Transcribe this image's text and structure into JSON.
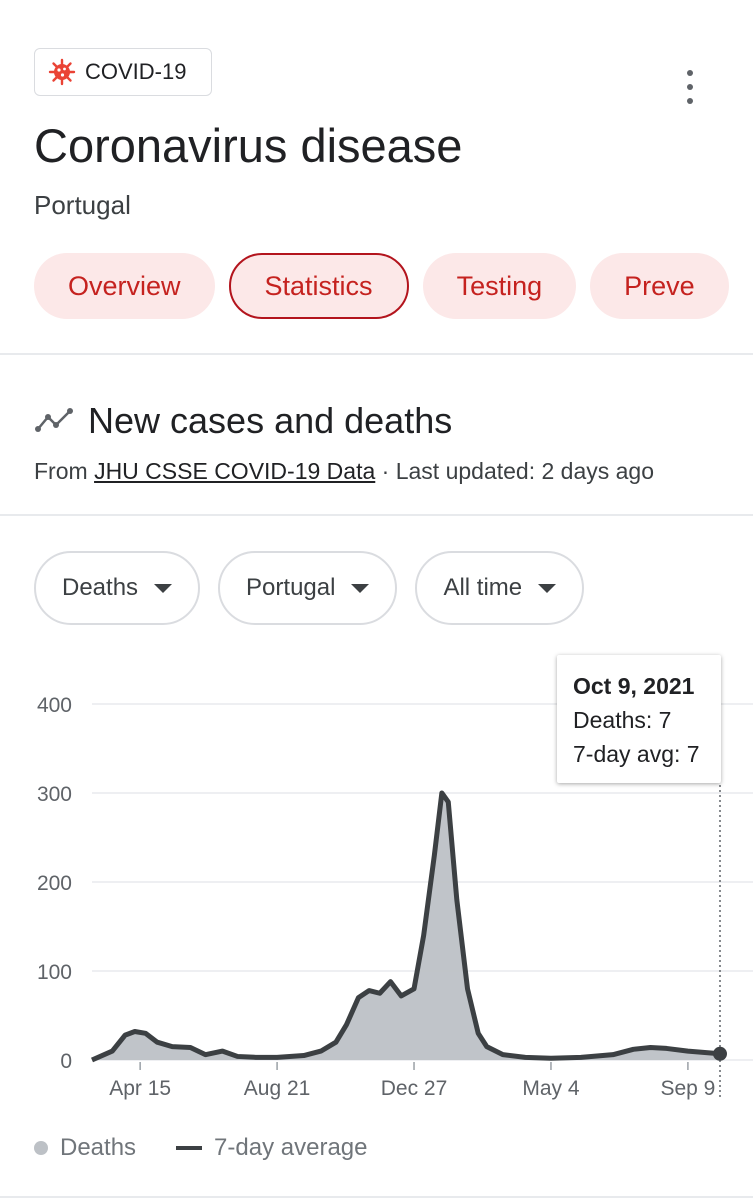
{
  "topic_chip": {
    "label": "COVID-19",
    "icon": "virus-icon",
    "icon_color": "#ea4335"
  },
  "header": {
    "title": "Coronavirus disease",
    "subtitle": "Portugal"
  },
  "tabs": [
    {
      "label": "Overview",
      "active": false
    },
    {
      "label": "Statistics",
      "active": true
    },
    {
      "label": "Testing",
      "active": false
    },
    {
      "label": "Preve",
      "active": false
    }
  ],
  "section": {
    "title": "New cases and deaths",
    "source_prefix": "From ",
    "source_link": "JHU CSSE COVID-19 Data",
    "updated": " · Last updated: 2 days ago"
  },
  "filters": {
    "metric": "Deaths",
    "region": "Portugal",
    "range": "All time"
  },
  "tooltip": {
    "date": "Oct 9, 2021",
    "deaths": "Deaths: 7",
    "avg": "7-day avg: 7"
  },
  "legend": {
    "deaths": "Deaths",
    "avg": "7-day average"
  },
  "colors": {
    "accent": "#c5221f",
    "bars": "#bdc1c6",
    "avg_line": "#3c4043"
  },
  "chart_data": {
    "type": "area",
    "y_ticks": [
      "400",
      "300",
      "200",
      "100",
      "0"
    ],
    "x_tick_labels": [
      "Apr 15",
      "Aug 21",
      "Dec 27",
      "May 4",
      "Sep 9"
    ],
    "ylim": [
      0,
      400
    ],
    "grid": true,
    "series": [
      {
        "name": "Deaths",
        "style": "area"
      },
      {
        "name": "7-day average",
        "style": "line"
      }
    ],
    "x": [
      "2020-03-01",
      "2020-03-20",
      "2020-04-01",
      "2020-04-10",
      "2020-04-20",
      "2020-05-01",
      "2020-05-15",
      "2020-06-01",
      "2020-06-15",
      "2020-07-01",
      "2020-07-15",
      "2020-08-01",
      "2020-08-21",
      "2020-09-15",
      "2020-10-01",
      "2020-10-15",
      "2020-10-25",
      "2020-11-05",
      "2020-11-15",
      "2020-11-25",
      "2020-12-05",
      "2020-12-15",
      "2020-12-27",
      "2021-01-05",
      "2021-01-15",
      "2021-01-22",
      "2021-01-28",
      "2021-02-05",
      "2021-02-15",
      "2021-02-25",
      "2021-03-05",
      "2021-03-20",
      "2021-04-10",
      "2021-05-04",
      "2021-06-01",
      "2021-07-01",
      "2021-07-20",
      "2021-08-05",
      "2021-08-20",
      "2021-09-09",
      "2021-10-09"
    ],
    "values": [
      0,
      10,
      28,
      32,
      30,
      20,
      15,
      14,
      6,
      10,
      4,
      3,
      3,
      5,
      10,
      20,
      40,
      70,
      78,
      75,
      88,
      72,
      80,
      140,
      230,
      300,
      290,
      180,
      80,
      30,
      15,
      6,
      3,
      2,
      3,
      6,
      12,
      14,
      13,
      10,
      7
    ]
  }
}
